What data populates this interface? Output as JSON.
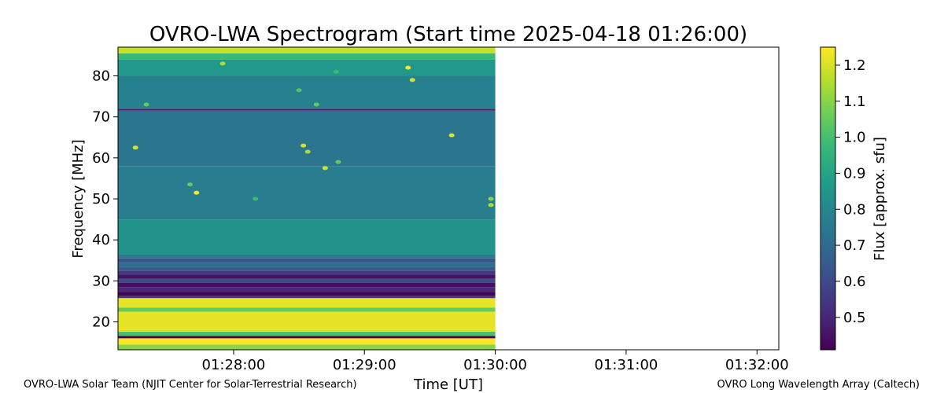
{
  "chart_data": {
    "type": "heatmap",
    "title": "OVRO-LWA Spectrogram (Start time 2025-04-18 01:26:00)",
    "xlabel": "Time [UT]",
    "ylabel": "Frequency [MHz]",
    "colorbar_label": "Flux [approx. sfu]",
    "colormap": "viridis",
    "x_range": [
      "01:27:07",
      "01:32:10"
    ],
    "data_end_time": "01:30:00",
    "ylim": [
      13.2,
      87
    ],
    "color_range": [
      0.41,
      1.25
    ],
    "x_ticks": [
      "01:28:00",
      "01:29:00",
      "01:30:00",
      "01:31:00",
      "01:32:00"
    ],
    "y_ticks": [
      20,
      30,
      40,
      50,
      60,
      70,
      80
    ],
    "colorbar_ticks": [
      0.5,
      0.6,
      0.7,
      0.8,
      0.9,
      1.0,
      1.1,
      1.2
    ],
    "colorbar_tick_labels": [
      "0.5",
      "0.6",
      "0.7",
      "0.8",
      "0.9",
      "1.0",
      "1.1",
      "1.2"
    ],
    "grid": false,
    "bands": [
      {
        "freq_range": [
          13.2,
          14.5
        ],
        "flux": 1.1
      },
      {
        "freq_range": [
          14.5,
          16.0
        ],
        "flux": 1.25
      },
      {
        "freq_range": [
          16.0,
          16.6
        ],
        "flux": 0.42
      },
      {
        "freq_range": [
          16.6,
          17.6
        ],
        "flux": 1.0
      },
      {
        "freq_range": [
          17.6,
          22.5
        ],
        "flux": 1.22
      },
      {
        "freq_range": [
          22.5,
          23.5
        ],
        "flux": 1.05
      },
      {
        "freq_range": [
          23.5,
          25.8
        ],
        "flux": 1.22
      },
      {
        "freq_range": [
          25.8,
          26.3
        ],
        "flux": 0.55
      },
      {
        "freq_range": [
          26.3,
          27.3
        ],
        "flux": 0.42
      },
      {
        "freq_range": [
          27.3,
          28.5
        ],
        "flux": 0.5
      },
      {
        "freq_range": [
          28.5,
          29.5
        ],
        "flux": 0.44
      },
      {
        "freq_range": [
          29.5,
          30.5
        ],
        "flux": 0.6
      },
      {
        "freq_range": [
          30.5,
          31.5
        ],
        "flux": 0.45
      },
      {
        "freq_range": [
          31.5,
          32.5
        ],
        "flux": 0.55
      },
      {
        "freq_range": [
          32.5,
          33.5
        ],
        "flux": 0.65
      },
      {
        "freq_range": [
          33.5,
          34.5
        ],
        "flux": 0.72
      },
      {
        "freq_range": [
          34.5,
          35.5
        ],
        "flux": 0.62
      },
      {
        "freq_range": [
          35.5,
          36.5
        ],
        "flux": 0.75
      },
      {
        "freq_range": [
          36.5,
          45.0
        ],
        "flux": 0.84
      },
      {
        "freq_range": [
          45.0,
          58.0
        ],
        "flux": 0.77
      },
      {
        "freq_range": [
          58.0,
          71.5
        ],
        "flux": 0.74
      },
      {
        "freq_range": [
          71.5,
          72.0
        ],
        "flux": 0.5
      },
      {
        "freq_range": [
          72.0,
          80.0
        ],
        "flux": 0.78
      },
      {
        "freq_range": [
          80.0,
          84.0
        ],
        "flux": 0.86
      },
      {
        "freq_range": [
          84.0,
          85.5
        ],
        "flux": 0.98
      },
      {
        "freq_range": [
          85.5,
          87.0
        ],
        "flux": 1.18
      }
    ],
    "bursts": [
      {
        "time": "01:27:15",
        "freq": 62.5,
        "flux": 1.2
      },
      {
        "time": "01:27:20",
        "freq": 73.0,
        "flux": 1.05
      },
      {
        "time": "01:27:40",
        "freq": 53.5,
        "flux": 1.05
      },
      {
        "time": "01:27:43",
        "freq": 51.5,
        "flux": 1.25
      },
      {
        "time": "01:27:55",
        "freq": 83.0,
        "flux": 1.15
      },
      {
        "time": "01:28:30",
        "freq": 76.5,
        "flux": 1.02
      },
      {
        "time": "01:28:32",
        "freq": 63.0,
        "flux": 1.2
      },
      {
        "time": "01:28:34",
        "freq": 61.5,
        "flux": 1.15
      },
      {
        "time": "01:28:38",
        "freq": 73.0,
        "flux": 1.05
      },
      {
        "time": "01:28:42",
        "freq": 57.5,
        "flux": 1.2
      },
      {
        "time": "01:28:48",
        "freq": 59.0,
        "flux": 1.05
      },
      {
        "time": "01:29:20",
        "freq": 82.0,
        "flux": 1.25
      },
      {
        "time": "01:29:22",
        "freq": 79.0,
        "flux": 1.2
      },
      {
        "time": "01:29:40",
        "freq": 65.5,
        "flux": 1.22
      },
      {
        "time": "01:29:58",
        "freq": 48.5,
        "flux": 1.15
      },
      {
        "time": "01:29:58",
        "freq": 50.0,
        "flux": 1.1
      },
      {
        "time": "01:28:47",
        "freq": 81.0,
        "flux": 0.98
      },
      {
        "time": "01:28:10",
        "freq": 50.0,
        "flux": 0.98
      }
    ]
  },
  "credits": {
    "left": "OVRO-LWA Solar Team (NJIT Center for Solar-Terrestrial Research)",
    "right": "OVRO Long Wavelength Array (Caltech)"
  }
}
